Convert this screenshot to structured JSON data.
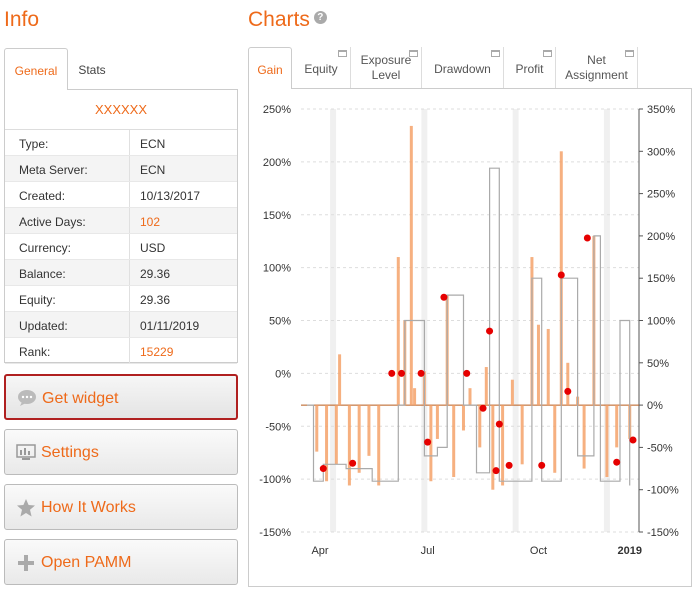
{
  "info": {
    "title": "Info",
    "tabs": [
      "General",
      "Stats"
    ],
    "account_name": "XXXXXX",
    "rows": [
      {
        "label": "Type:",
        "value": "ECN"
      },
      {
        "label": "Meta Server:",
        "value": "ECN"
      },
      {
        "label": "Created:",
        "value": "10/13/2017"
      },
      {
        "label": "Active Days:",
        "value": "102"
      },
      {
        "label": "Currency:",
        "value": "USD"
      },
      {
        "label": "Balance:",
        "value": "29.36"
      },
      {
        "label": "Equity:",
        "value": "29.36"
      },
      {
        "label": "Updated:",
        "value": "01/11/2019"
      },
      {
        "label": "Rank:",
        "value": "15229"
      }
    ],
    "buttons": [
      {
        "label": "Get widget",
        "icon": "speech-bubble-icon"
      },
      {
        "label": "Settings",
        "icon": "monitor-icon"
      },
      {
        "label": "How It Works",
        "icon": "star-icon"
      },
      {
        "label": "Open PAMM",
        "icon": "plus-icon"
      }
    ]
  },
  "charts": {
    "title": "Charts",
    "help_icon": "?",
    "tabs": [
      "Gain",
      "Equity",
      "Exposure Level",
      "Drawdown",
      "Profit",
      "Net Assignment"
    ]
  },
  "colors": {
    "accent": "#ee6a1a",
    "bar": "#f5a26a",
    "line": "#aaaaaa",
    "marker": "#e60000"
  },
  "chart_data": {
    "type": "bar",
    "left_axis": {
      "ticks": [
        "250%",
        "200%",
        "150%",
        "100%",
        "50%",
        "0%",
        "-50%",
        "-100%",
        "-150%"
      ],
      "ylim": [
        -150,
        250
      ]
    },
    "right_axis": {
      "ticks": [
        "350%",
        "300%",
        "250%",
        "200%",
        "150%",
        "100%",
        "50%",
        "0%",
        "-50%",
        "-100%",
        "-150%"
      ],
      "ylim": [
        -150,
        350
      ]
    },
    "x_ticks": [
      "Apr",
      "Jul",
      "Oct",
      "2019"
    ],
    "grid": true,
    "bars_right_axis": [
      {
        "t": 0.03,
        "v": -55
      },
      {
        "t": 0.06,
        "v": -90
      },
      {
        "t": 0.09,
        "v": -70
      },
      {
        "t": 0.1,
        "v": 60
      },
      {
        "t": 0.13,
        "v": -95
      },
      {
        "t": 0.16,
        "v": -80
      },
      {
        "t": 0.19,
        "v": -60
      },
      {
        "t": 0.22,
        "v": -95
      },
      {
        "t": 0.26,
        "v": 0
      },
      {
        "t": 0.28,
        "v": 175
      },
      {
        "t": 0.3,
        "v": 100
      },
      {
        "t": 0.32,
        "v": 330
      },
      {
        "t": 0.33,
        "v": 20
      },
      {
        "t": 0.36,
        "v": 40
      },
      {
        "t": 0.38,
        "v": -90
      },
      {
        "t": 0.4,
        "v": -40
      },
      {
        "t": 0.43,
        "v": 130
      },
      {
        "t": 0.45,
        "v": -85
      },
      {
        "t": 0.48,
        "v": -30
      },
      {
        "t": 0.5,
        "v": 20
      },
      {
        "t": 0.53,
        "v": -50
      },
      {
        "t": 0.55,
        "v": 45
      },
      {
        "t": 0.57,
        "v": -100
      },
      {
        "t": 0.6,
        "v": -95
      },
      {
        "t": 0.63,
        "v": 30
      },
      {
        "t": 0.66,
        "v": -70
      },
      {
        "t": 0.69,
        "v": 175
      },
      {
        "t": 0.71,
        "v": 95
      },
      {
        "t": 0.74,
        "v": 90
      },
      {
        "t": 0.76,
        "v": -80
      },
      {
        "t": 0.78,
        "v": 300
      },
      {
        "t": 0.8,
        "v": 50
      },
      {
        "t": 0.83,
        "v": 10
      },
      {
        "t": 0.85,
        "v": -75
      },
      {
        "t": 0.88,
        "v": 200
      },
      {
        "t": 0.92,
        "v": -85
      },
      {
        "t": 0.95,
        "v": -50
      },
      {
        "t": 0.99,
        "v": -40
      }
    ],
    "line_right_axis": [
      {
        "t": 0.0,
        "v": 0
      },
      {
        "t": 0.02,
        "v": -90
      },
      {
        "t": 0.05,
        "v": -70
      },
      {
        "t": 0.12,
        "v": -75
      },
      {
        "t": 0.2,
        "v": -90
      },
      {
        "t": 0.28,
        "v": 0
      },
      {
        "t": 0.3,
        "v": 100
      },
      {
        "t": 0.33,
        "v": 100
      },
      {
        "t": 0.36,
        "v": -60
      },
      {
        "t": 0.4,
        "v": -50
      },
      {
        "t": 0.43,
        "v": 130
      },
      {
        "t": 0.48,
        "v": 0
      },
      {
        "t": 0.52,
        "v": -80
      },
      {
        "t": 0.56,
        "v": 280
      },
      {
        "t": 0.59,
        "v": -90
      },
      {
        "t": 0.63,
        "v": -90
      },
      {
        "t": 0.69,
        "v": 150
      },
      {
        "t": 0.72,
        "v": -90
      },
      {
        "t": 0.78,
        "v": 150
      },
      {
        "t": 0.83,
        "v": -60
      },
      {
        "t": 0.88,
        "v": 200
      },
      {
        "t": 0.9,
        "v": -90
      },
      {
        "t": 0.96,
        "v": 100
      },
      {
        "t": 0.99,
        "v": -95
      }
    ],
    "markers_left_axis": [
      {
        "t": 0.05,
        "v": -90
      },
      {
        "t": 0.14,
        "v": -85
      },
      {
        "t": 0.26,
        "v": 0
      },
      {
        "t": 0.29,
        "v": 0
      },
      {
        "t": 0.35,
        "v": 0
      },
      {
        "t": 0.37,
        "v": -65
      },
      {
        "t": 0.42,
        "v": 72
      },
      {
        "t": 0.49,
        "v": 0
      },
      {
        "t": 0.54,
        "v": -33
      },
      {
        "t": 0.56,
        "v": 40
      },
      {
        "t": 0.58,
        "v": -92
      },
      {
        "t": 0.59,
        "v": -48
      },
      {
        "t": 0.62,
        "v": -87
      },
      {
        "t": 0.72,
        "v": -87
      },
      {
        "t": 0.78,
        "v": 93
      },
      {
        "t": 0.8,
        "v": -17
      },
      {
        "t": 0.86,
        "v": 128
      },
      {
        "t": 0.95,
        "v": -84
      },
      {
        "t": 1.0,
        "v": -63
      }
    ]
  }
}
